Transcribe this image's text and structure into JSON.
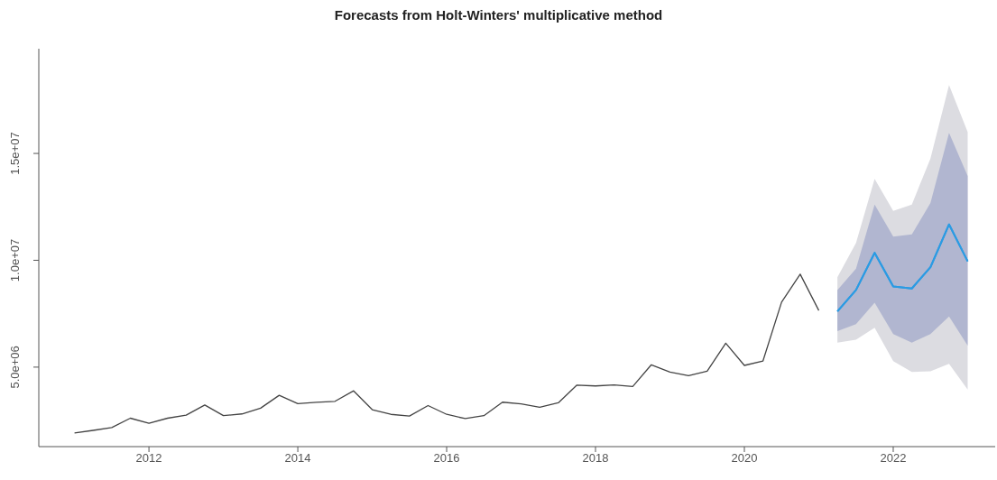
{
  "chart_data": {
    "type": "line",
    "title": "Forecasts from Holt-Winters' multiplicative method",
    "xlim": [
      2010.52,
      2023.37
    ],
    "xticks": [
      2012,
      2014,
      2016,
      2018,
      2020,
      2022
    ],
    "ylim": [
      1280000,
      19900000
    ],
    "yticks": [
      {
        "value": 5000000,
        "label": "5.0e+06"
      },
      {
        "value": 10000000,
        "label": "1.0e+07"
      },
      {
        "value": 15000000,
        "label": "1.5e+07"
      }
    ],
    "grid": false,
    "legend": false,
    "marker": "none",
    "line_style": "solid",
    "series": [
      {
        "color": "#444444",
        "x": [
          2011,
          2011.25,
          2011.5,
          2011.75,
          2012,
          2012.25,
          2012.5,
          2012.75,
          2013,
          2013.25,
          2013.5,
          2013.75,
          2014,
          2014.25,
          2014.5,
          2014.75,
          2015,
          2015.25,
          2015.5,
          2015.75,
          2016,
          2016.25,
          2016.5,
          2016.75,
          2017,
          2017.25,
          2017.5,
          2017.75,
          2018,
          2018.25,
          2018.5,
          2018.75,
          2019,
          2019.25,
          2019.5,
          2019.75,
          2020,
          2020.25,
          2020.5,
          2020.75,
          2021
        ],
        "values": [
          1920000,
          2040000,
          2170000,
          2610000,
          2370000,
          2610000,
          2750000,
          3230000,
          2730000,
          2810000,
          3080000,
          3680000,
          3290000,
          3350000,
          3400000,
          3890000,
          3010000,
          2790000,
          2710000,
          3200000,
          2790000,
          2590000,
          2730000,
          3360000,
          3280000,
          3120000,
          3330000,
          4160000,
          4120000,
          4170000,
          4090000,
          5110000,
          4770000,
          4600000,
          4810000,
          6120000,
          5080000,
          5290000,
          8040000,
          9350000,
          7650000
        ]
      },
      {
        "type": "line",
        "color": "#2b9be3",
        "x": [
          2021.25,
          2021.5,
          2021.75,
          2022,
          2022.25,
          2022.5,
          2022.75,
          2023
        ],
        "values": [
          7610000,
          8610000,
          10350000,
          8770000,
          8680000,
          9680000,
          11680000,
          9950000
        ],
        "lower": [
          6150000,
          6280000,
          6840000,
          5280000,
          4770000,
          4810000,
          5150000,
          3950000
        ],
        "upper": [
          9210000,
          10810000,
          13810000,
          12310000,
          12610000,
          14760000,
          18200000,
          16000000
        ]
      },
      {
        "type": "line",
        "color": "#2b9be3",
        "x": [
          2021.25,
          2021.5,
          2021.75,
          2022,
          2022.25,
          2022.5,
          2022.75,
          2023
        ],
        "values": [
          7610000,
          8610000,
          10350000,
          8770000,
          8680000,
          9680000,
          11680000,
          9950000
        ],
        "lower": [
          6680000,
          7010000,
          8010000,
          6550000,
          6150000,
          6550000,
          7370000,
          6010000
        ],
        "upper": [
          8610000,
          9610000,
          12610000,
          11110000,
          11210000,
          12680000,
          15960000,
          13950000
        ]
      }
    ]
  }
}
